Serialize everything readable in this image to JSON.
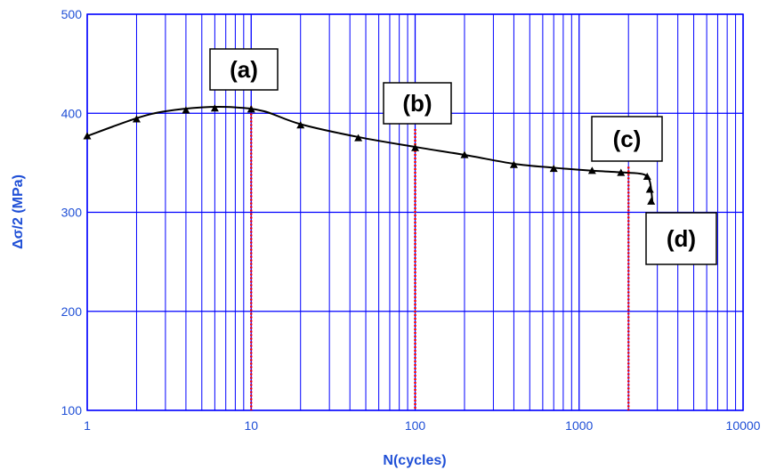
{
  "chart_data": {
    "type": "scatter",
    "xscale": "log",
    "xlim": [
      1,
      10000
    ],
    "ylim": [
      100,
      500
    ],
    "xlabel": "N(cycles)",
    "ylabel": "Δσ/2 (MPa)",
    "x_ticks": [
      "1",
      "10",
      "100",
      "1000",
      "10000"
    ],
    "y_ticks": [
      "100",
      "200",
      "300",
      "400",
      "500"
    ],
    "grid": true,
    "series": [
      {
        "marker": "triangle",
        "points": [
          {
            "x": 1,
            "y": 377
          },
          {
            "x": 2,
            "y": 394
          },
          {
            "x": 4,
            "y": 403
          },
          {
            "x": 6,
            "y": 405
          },
          {
            "x": 10,
            "y": 404
          },
          {
            "x": 20,
            "y": 388
          },
          {
            "x": 45,
            "y": 375
          },
          {
            "x": 100,
            "y": 365
          },
          {
            "x": 200,
            "y": 358
          },
          {
            "x": 400,
            "y": 348
          },
          {
            "x": 700,
            "y": 344
          },
          {
            "x": 1200,
            "y": 342
          },
          {
            "x": 1800,
            "y": 340
          },
          {
            "x": 2600,
            "y": 336
          },
          {
            "x": 2700,
            "y": 323
          },
          {
            "x": 2750,
            "y": 311
          }
        ]
      }
    ],
    "trend_curve": [
      {
        "x": 1,
        "y": 377
      },
      {
        "x": 2,
        "y": 395
      },
      {
        "x": 3,
        "y": 402
      },
      {
        "x": 5,
        "y": 406
      },
      {
        "x": 8,
        "y": 406
      },
      {
        "x": 12,
        "y": 402
      },
      {
        "x": 20,
        "y": 389
      },
      {
        "x": 45,
        "y": 376
      },
      {
        "x": 100,
        "y": 366
      },
      {
        "x": 200,
        "y": 358
      },
      {
        "x": 400,
        "y": 349
      },
      {
        "x": 700,
        "y": 345
      },
      {
        "x": 1200,
        "y": 342
      },
      {
        "x": 2000,
        "y": 340
      },
      {
        "x": 2500,
        "y": 338
      },
      {
        "x": 2700,
        "y": 331
      },
      {
        "x": 2800,
        "y": 311
      }
    ],
    "markers": [
      {
        "label": "(a)",
        "x": 10,
        "y_top": 407
      },
      {
        "label": "(b)",
        "x": 100,
        "y_top": 384
      },
      {
        "label": "(c)",
        "x": 2000,
        "y_top": 346
      },
      {
        "label": "(d)"
      }
    ],
    "colors": {
      "grid": "#0000ff",
      "axis_text": "#1f4fd6",
      "curve": "#000000",
      "marker_line": "#ff0000"
    }
  }
}
